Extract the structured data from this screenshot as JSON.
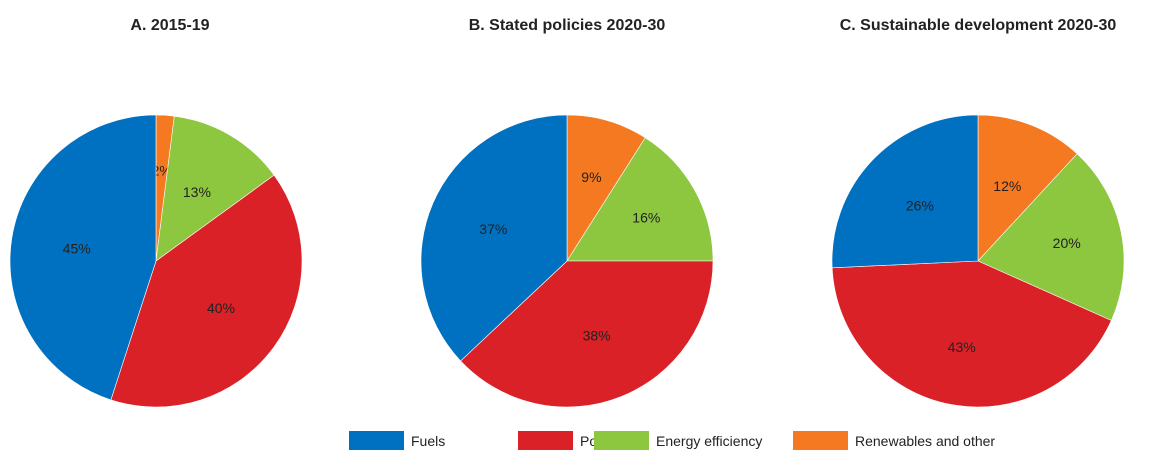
{
  "chart_data": [
    {
      "type": "pie",
      "title": "A. 2015-19",
      "slices": [
        {
          "label": "Renewables and other",
          "value": 2,
          "display": "2%"
        },
        {
          "label": "Energy efficiency",
          "value": 13,
          "display": "13%"
        },
        {
          "label": "Power",
          "value": 40,
          "display": "40%"
        },
        {
          "label": "Fuels",
          "value": 45,
          "display": "45%"
        }
      ]
    },
    {
      "type": "pie",
      "title": "B. Stated policies 2020-30",
      "slices": [
        {
          "label": "Renewables and other",
          "value": 9,
          "display": "9%"
        },
        {
          "label": "Energy efficiency",
          "value": 16,
          "display": "16%"
        },
        {
          "label": "Power",
          "value": 38,
          "display": "38%"
        },
        {
          "label": "Fuels",
          "value": 37,
          "display": "37%"
        }
      ]
    },
    {
      "type": "pie",
      "title": "C. Sustainable development 2020-30",
      "slices": [
        {
          "label": "Renewables and other",
          "value": 12,
          "display": "12%"
        },
        {
          "label": "Energy efficiency",
          "value": 20,
          "display": "20%"
        },
        {
          "label": "Power",
          "value": 43,
          "display": "43%"
        },
        {
          "label": "Fuels",
          "value": 26,
          "display": "26%"
        }
      ]
    }
  ],
  "legend": {
    "placement": "bottom",
    "items": [
      {
        "label": "Fuels",
        "color": "#0070C0"
      },
      {
        "label": "Power",
        "color": "#DA2128"
      },
      {
        "label": "Energy efficiency",
        "color": "#8DC63F"
      },
      {
        "label": "Renewables and other",
        "color": "#F47920"
      }
    ]
  },
  "colors": {
    "Fuels": "#0070C0",
    "Power": "#DA2128",
    "Energy efficiency": "#8DC63F",
    "Renewables and other": "#F47920"
  }
}
